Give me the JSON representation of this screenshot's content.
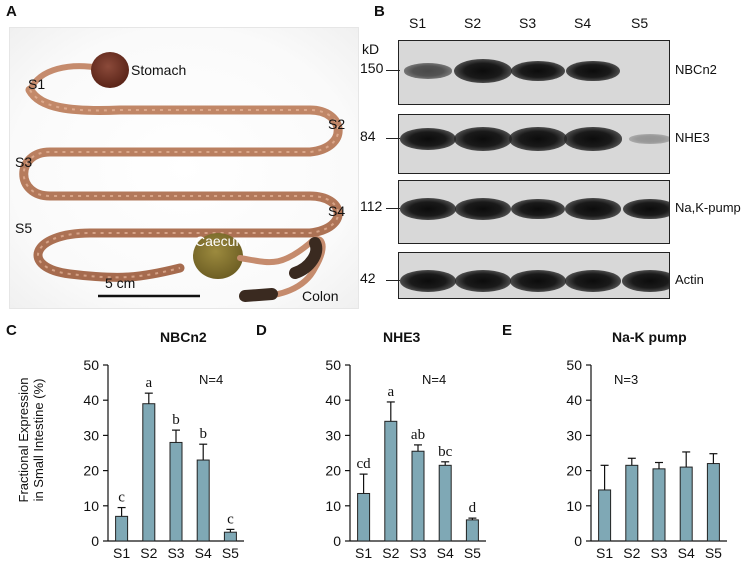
{
  "panels": {
    "A": "A",
    "B": "B",
    "C": "C",
    "D": "D",
    "E": "E"
  },
  "photo": {
    "labels": {
      "stomach": "Stomach",
      "s1": "S1",
      "s2": "S2",
      "s3": "S3",
      "s4": "S4",
      "s5": "S5",
      "caecum": "Caecum",
      "colon": "Colon",
      "scale": "5 cm"
    }
  },
  "blot": {
    "lanes": [
      "S1",
      "S2",
      "S3",
      "S4",
      "S5"
    ],
    "kd_header": "kD",
    "rows": [
      {
        "kd": "150",
        "name": "NBCn2",
        "intensity": [
          0.45,
          1.0,
          0.75,
          0.8,
          0.0
        ]
      },
      {
        "kd": "84",
        "name": "NHE3",
        "intensity": [
          0.85,
          1.0,
          0.95,
          0.95,
          0.08
        ]
      },
      {
        "kd": "112",
        "name": "Na,K-pump",
        "intensity": [
          0.85,
          0.85,
          0.8,
          0.85,
          0.8
        ]
      },
      {
        "kd": "42",
        "name": "Actin",
        "intensity": [
          0.85,
          0.85,
          0.85,
          0.85,
          0.85
        ]
      }
    ]
  },
  "charts": {
    "C": {
      "title": "NBCn2",
      "ylabel_line1": "Fractional Expression",
      "ylabel_line2": "in Small Intestine (%)",
      "n_label": "N=4"
    },
    "D": {
      "title": "NHE3",
      "n_label": "N=4"
    },
    "E": {
      "title": "Na-K pump",
      "n_label": "N=3"
    }
  },
  "chart_data": [
    {
      "type": "bar",
      "title": "NBCn2",
      "ylabel": "Fractional Expression in Small Intestine (%)",
      "categories": [
        "S1",
        "S2",
        "S3",
        "S4",
        "S5"
      ],
      "values": [
        7,
        39,
        28,
        23,
        2.5
      ],
      "errors": [
        2.5,
        3,
        3.5,
        4.5,
        0.8
      ],
      "letters": [
        "c",
        "a",
        "b",
        "b",
        "c"
      ],
      "annotation": "N=4",
      "ylim": [
        0,
        50
      ],
      "yticks": [
        0,
        10,
        20,
        30,
        40,
        50
      ],
      "bar_color": "#7fa8b5"
    },
    {
      "type": "bar",
      "title": "NHE3",
      "categories": [
        "S1",
        "S2",
        "S3",
        "S4",
        "S5"
      ],
      "values": [
        13.5,
        34,
        25.5,
        21.5,
        6
      ],
      "errors": [
        5.5,
        5.5,
        1.8,
        1,
        0.5
      ],
      "letters": [
        "cd",
        "a",
        "ab",
        "bc",
        "d"
      ],
      "annotation": "N=4",
      "ylim": [
        0,
        50
      ],
      "yticks": [
        0,
        10,
        20,
        30,
        40,
        50
      ],
      "bar_color": "#7fa8b5"
    },
    {
      "type": "bar",
      "title": "Na-K pump",
      "categories": [
        "S1",
        "S2",
        "S3",
        "S4",
        "S5"
      ],
      "values": [
        14.5,
        21.5,
        20.5,
        21,
        22
      ],
      "errors": [
        7,
        2,
        1.8,
        4.3,
        2.8
      ],
      "letters": [
        "",
        "",
        "",
        "",
        ""
      ],
      "annotation": "N=3",
      "ylim": [
        0,
        50
      ],
      "yticks": [
        0,
        10,
        20,
        30,
        40,
        50
      ],
      "bar_color": "#7fa8b5"
    }
  ]
}
